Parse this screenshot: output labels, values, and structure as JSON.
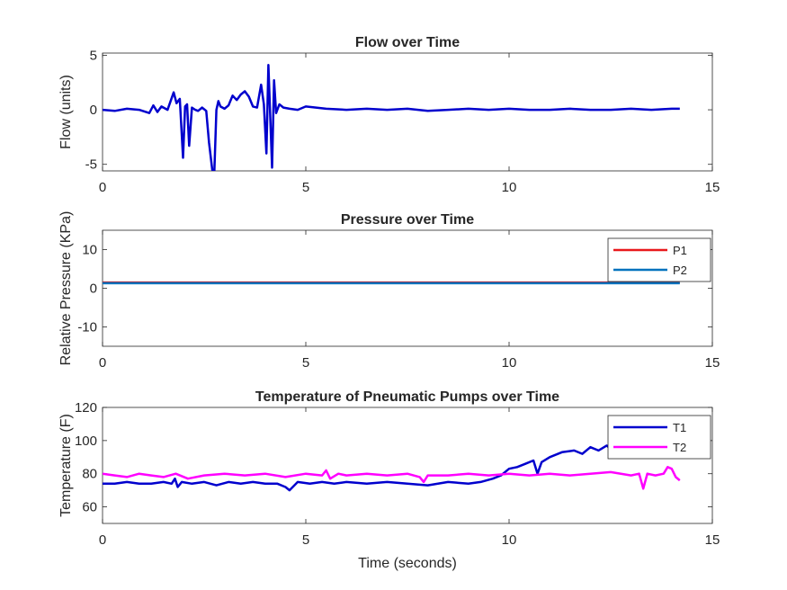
{
  "chart_data": [
    {
      "type": "line",
      "title": "Flow over Time",
      "xlabel": "",
      "ylabel": "Flow (units)",
      "xlim": [
        0,
        15
      ],
      "ylim": [
        -5.6,
        5.2
      ],
      "xticks": [
        0,
        5,
        10,
        15
      ],
      "yticks": [
        -5,
        0,
        5
      ],
      "legend": null,
      "series": [
        {
          "color": "#0000cd",
          "x": [
            0,
            0.3,
            0.6,
            0.9,
            1.15,
            1.25,
            1.35,
            1.45,
            1.6,
            1.75,
            1.82,
            1.9,
            1.98,
            2.03,
            2.08,
            2.13,
            2.2,
            2.28,
            2.35,
            2.45,
            2.55,
            2.62,
            2.7,
            2.75,
            2.8,
            2.85,
            2.9,
            3.0,
            3.1,
            3.2,
            3.3,
            3.4,
            3.5,
            3.6,
            3.7,
            3.8,
            3.9,
            3.97,
            4.03,
            4.08,
            4.12,
            4.17,
            4.22,
            4.27,
            4.35,
            4.45,
            4.6,
            4.8,
            5.0,
            5.5,
            6.0,
            6.5,
            7.0,
            7.5,
            8.0,
            8.5,
            9.0,
            9.5,
            10.0,
            10.5,
            11.0,
            11.5,
            12.0,
            12.5,
            13.0,
            13.5,
            14.0,
            14.2
          ],
          "y": [
            0.0,
            -0.1,
            0.1,
            0.0,
            -0.3,
            0.4,
            -0.2,
            0.3,
            0.0,
            1.6,
            0.6,
            1.0,
            -4.4,
            0.3,
            0.5,
            -3.3,
            0.2,
            0.0,
            -0.1,
            0.2,
            -0.1,
            -3.0,
            -5.5,
            -5.7,
            0.0,
            0.8,
            0.3,
            0.1,
            0.4,
            1.3,
            0.9,
            1.4,
            1.7,
            1.2,
            0.3,
            0.2,
            2.3,
            0.5,
            -4.0,
            4.1,
            0.0,
            -5.3,
            2.7,
            -0.3,
            0.5,
            0.2,
            0.1,
            0.0,
            0.3,
            0.1,
            0.0,
            0.1,
            0.0,
            0.1,
            -0.1,
            0.0,
            0.1,
            0.0,
            0.1,
            0.0,
            0.0,
            0.1,
            0.0,
            0.0,
            0.1,
            0.0,
            0.1,
            0.1
          ]
        }
      ]
    },
    {
      "type": "line",
      "title": "Pressure over Time",
      "xlabel": "",
      "ylabel": "Relative Pressure (KPa)",
      "xlim": [
        0,
        15
      ],
      "ylim": [
        -15,
        15
      ],
      "xticks": [
        0,
        5,
        10,
        15
      ],
      "yticks": [
        -10,
        0,
        10
      ],
      "legend": "top-right",
      "series": [
        {
          "name": "P1",
          "color": "#e8191c",
          "x": [
            0,
            14.2
          ],
          "y": [
            1.5,
            1.5
          ]
        },
        {
          "name": "P2",
          "color": "#0072bd",
          "x": [
            0,
            14.2
          ],
          "y": [
            1.3,
            1.3
          ]
        }
      ]
    },
    {
      "type": "line",
      "title": "Temperature of Pneumatic Pumps over Time",
      "xlabel": "Time (seconds)",
      "ylabel": "Temperature (F)",
      "xlim": [
        0,
        15
      ],
      "ylim": [
        50,
        120
      ],
      "xticks": [
        0,
        5,
        10,
        15
      ],
      "yticks": [
        60,
        80,
        100,
        120
      ],
      "legend": "top-right",
      "series": [
        {
          "name": "T1",
          "color": "#0000cd",
          "x": [
            0,
            0.3,
            0.6,
            0.9,
            1.2,
            1.5,
            1.7,
            1.78,
            1.85,
            1.95,
            2.2,
            2.5,
            2.8,
            3.1,
            3.4,
            3.7,
            4.0,
            4.3,
            4.5,
            4.6,
            4.8,
            5.1,
            5.4,
            5.7,
            6.0,
            6.5,
            7.0,
            7.5,
            8.0,
            8.5,
            9.0,
            9.3,
            9.6,
            9.8,
            10.0,
            10.2,
            10.4,
            10.6,
            10.7,
            10.8,
            11.0,
            11.3,
            11.6,
            11.8,
            12.0,
            12.2,
            12.4,
            12.5
          ],
          "y": [
            74,
            74,
            75,
            74,
            74,
            75,
            74,
            77,
            72,
            75,
            74,
            75,
            73,
            75,
            74,
            75,
            74,
            74,
            72,
            70,
            75,
            74,
            75,
            74,
            75,
            74,
            75,
            74,
            73,
            75,
            74,
            75,
            77,
            79,
            83,
            84,
            86,
            88,
            80,
            87,
            90,
            93,
            94,
            92,
            96,
            94,
            97,
            95
          ]
        },
        {
          "name": "T2",
          "color": "#ff00ff",
          "x": [
            0,
            0.3,
            0.6,
            0.9,
            1.2,
            1.5,
            1.8,
            2.1,
            2.5,
            3.0,
            3.5,
            4.0,
            4.5,
            5.0,
            5.4,
            5.5,
            5.6,
            5.8,
            6.0,
            6.5,
            7.0,
            7.5,
            7.8,
            7.9,
            8.0,
            8.5,
            9.0,
            9.5,
            10.0,
            10.5,
            11.0,
            11.5,
            12.0,
            12.5,
            13.0,
            13.2,
            13.3,
            13.4,
            13.6,
            13.8,
            13.9,
            14.0,
            14.1,
            14.2
          ],
          "y": [
            80,
            79,
            78,
            80,
            79,
            78,
            80,
            77,
            79,
            80,
            79,
            80,
            78,
            80,
            79,
            82,
            77,
            80,
            79,
            80,
            79,
            80,
            78,
            75,
            79,
            79,
            80,
            79,
            80,
            79,
            80,
            79,
            80,
            81,
            79,
            80,
            71,
            80,
            79,
            80,
            84,
            83,
            78,
            76
          ]
        }
      ]
    }
  ]
}
